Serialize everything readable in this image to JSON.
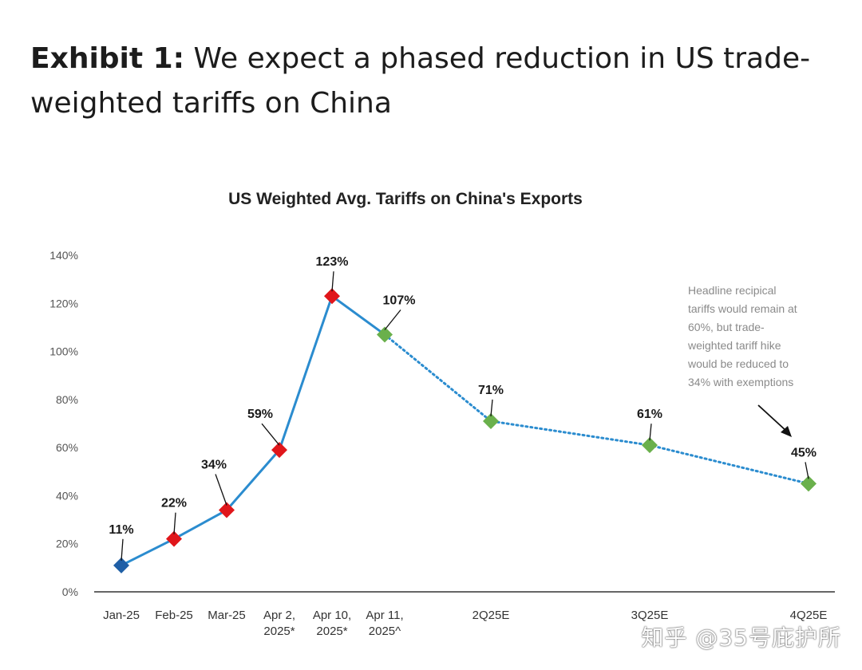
{
  "header": {
    "label": "Exhibit 1:",
    "title": "We expect a phased reduction in US trade-weighted tariffs on China"
  },
  "watermark": "知乎 @35号庇护所",
  "chart_data": {
    "type": "line",
    "title": "US Weighted Avg. Tariffs on China's Exports",
    "xlabel": "",
    "ylabel": "",
    "ylim": [
      0,
      140
    ],
    "yticks": [
      "0%",
      "20%",
      "40%",
      "60%",
      "80%",
      "100%",
      "120%",
      "140%"
    ],
    "grid": false,
    "categories": [
      [
        "Jan-25"
      ],
      [
        "Feb-25"
      ],
      [
        "Mar-25"
      ],
      [
        "Apr 2,",
        "2025*"
      ],
      [
        "Apr 10,",
        "2025*"
      ],
      [
        "Apr 11,",
        "2025^"
      ],
      [
        "2Q25E"
      ],
      [
        "3Q25E"
      ],
      [
        "4Q25E"
      ]
    ],
    "values": [
      11,
      22,
      34,
      59,
      123,
      107,
      71,
      61,
      45
    ],
    "labels": [
      "11%",
      "22%",
      "34%",
      "59%",
      "123%",
      "107%",
      "71%",
      "61%",
      "45%"
    ],
    "marker_colors": [
      "#1f5fa6",
      "#e0161b",
      "#e0161b",
      "#e0161b",
      "#e0161b",
      "#6ab04c",
      "#6ab04c",
      "#6ab04c",
      "#6ab04c"
    ],
    "line_color": "#2b8ccf",
    "solid_until_index": 5,
    "annotation": {
      "lines": [
        "Headline recipical",
        "tariffs would remain at",
        "60%, but trade-",
        "weighted tariff hike",
        "would be reduced to",
        "34% with exemptions"
      ]
    }
  }
}
